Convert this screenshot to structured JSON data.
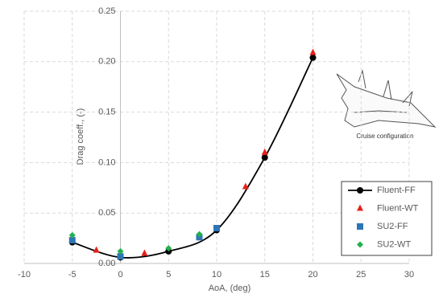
{
  "chart_data": {
    "type": "scatter",
    "x_label": "AoA, (deg)",
    "y_label": "Drag coeff., (-)",
    "annotation": "Cruise configuration",
    "xlim": [
      -10,
      30
    ],
    "xticks": [
      -10,
      -5,
      0,
      5,
      10,
      15,
      20,
      25,
      30
    ],
    "ylim": [
      0,
      0.25
    ],
    "yticks": [
      {
        "value": 0,
        "label": "0.00"
      },
      0.05,
      {
        "value": 0.1,
        "label": "0.10"
      },
      0.15,
      {
        "value": 0.2,
        "label": "0.20"
      },
      0.25
    ],
    "grid": true,
    "legend": "lower right",
    "series": [
      {
        "name": "Fluent-FF",
        "color": "#000000",
        "marker": "circle",
        "line": true,
        "x": [
          -5,
          0,
          5,
          10,
          15,
          20
        ],
        "values": [
          0.021,
          0.006,
          0.012,
          0.033,
          0.105,
          0.204
        ]
      },
      {
        "name": "Fluent-WT",
        "color": "#e8201a",
        "marker": "triangle",
        "x": [
          -2.5,
          2.5,
          13,
          15,
          20
        ],
        "values": [
          0.013,
          0.01,
          0.076,
          0.11,
          0.209
        ]
      },
      {
        "name": "SU2-FF",
        "color": "#2e75b6",
        "marker": "square",
        "x": [
          -5,
          0,
          8.2,
          10
        ],
        "values": [
          0.023,
          0.007,
          0.026,
          0.035
        ]
      },
      {
        "name": "SU2-WT",
        "color": "#22b14c",
        "marker": "diamond",
        "x": [
          -5,
          0,
          5,
          8.2
        ],
        "values": [
          0.028,
          0.012,
          0.015,
          0.029
        ]
      }
    ]
  }
}
